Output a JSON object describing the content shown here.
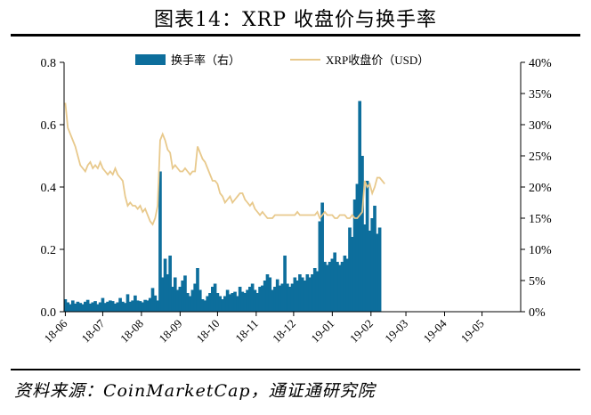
{
  "header": {
    "title": "图表14：XRP 收盘价与换手率"
  },
  "footer": {
    "source": "资料来源：CoinMarketCap，通证通研究院"
  },
  "colors": {
    "turnover": "#0d6e9c",
    "price": "#e8c98c",
    "axis": "#000000"
  },
  "chart_data": {
    "type": "bar+line",
    "title": "",
    "xlabel": "",
    "ylabel_left": "",
    "ylabel_right": "",
    "grid": false,
    "legend_position": "top-center",
    "x_tick_labels": [
      "18-06",
      "18-07",
      "18-08",
      "18-09",
      "18-10",
      "18-11",
      "18-12",
      "19-01",
      "19-02",
      "19-03",
      "19-04",
      "19-05"
    ],
    "y_left": {
      "ticks": [
        "0.0",
        "0.2",
        "0.4",
        "0.6",
        "0.8"
      ],
      "ylim": [
        0,
        0.8
      ]
    },
    "y_right": {
      "ticks": [
        "0%",
        "5%",
        "10%",
        "15%",
        "20%",
        "25%",
        "30%",
        "35%",
        "40%"
      ],
      "ylim": [
        0,
        40
      ]
    },
    "series": [
      {
        "name": "换手率（右）",
        "kind": "bar",
        "axis": "right",
        "unit": "%",
        "start": "2018-06-01",
        "step_days": 2,
        "values": [
          2.0,
          1.5,
          1.2,
          1.8,
          1.3,
          1.6,
          1.4,
          1.2,
          1.6,
          1.9,
          1.3,
          1.5,
          1.7,
          1.2,
          1.5,
          2.2,
          1.4,
          1.6,
          1.8,
          1.7,
          1.3,
          1.5,
          2.2,
          1.6,
          1.4,
          2.8,
          1.6,
          1.8,
          2.6,
          1.8,
          1.7,
          1.5,
          1.9,
          1.8,
          2.2,
          3.8,
          2.6,
          1.8,
          22.5,
          5.5,
          8.5,
          6.0,
          9.0,
          4.0,
          5.5,
          3.5,
          4.0,
          5.0,
          5.8,
          3.0,
          2.5,
          3.5,
          4.5,
          7.0,
          3.5,
          2.0,
          1.8,
          2.5,
          3.0,
          4.0,
          4.5,
          3.0,
          2.5,
          2.0,
          2.5,
          3.5,
          2.8,
          3.0,
          3.2,
          2.5,
          4.0,
          3.2,
          3.0,
          3.5,
          4.0,
          4.5,
          3.5,
          3.0,
          4.0,
          4.2,
          5.0,
          6.0,
          5.5,
          3.5,
          4.0,
          5.2,
          4.2,
          4.5,
          9.0,
          4.5,
          4.0,
          4.5,
          5.5,
          5.0,
          6.0,
          5.5,
          5.0,
          6.0,
          5.5,
          6.0,
          7.0,
          6.5,
          14.5,
          17.5,
          8.0,
          7.5,
          8.0,
          8.5,
          9.5,
          8.0,
          7.5,
          8.0,
          9.0,
          8.5,
          13.5,
          12.0,
          18.0,
          20.5,
          33.8,
          25.0,
          14.0,
          21.0,
          13.0,
          15.0,
          17.0,
          12.5,
          13.5
        ]
      },
      {
        "name": "XRP收盘价（USD）",
        "kind": "line",
        "axis": "left",
        "unit": "USD",
        "start": "2018-06-01",
        "step_days": 2,
        "values": [
          0.67,
          0.59,
          0.57,
          0.55,
          0.53,
          0.5,
          0.47,
          0.46,
          0.45,
          0.47,
          0.48,
          0.46,
          0.47,
          0.46,
          0.48,
          0.46,
          0.45,
          0.44,
          0.45,
          0.44,
          0.46,
          0.44,
          0.43,
          0.42,
          0.37,
          0.34,
          0.35,
          0.34,
          0.34,
          0.33,
          0.34,
          0.32,
          0.33,
          0.31,
          0.29,
          0.28,
          0.3,
          0.34,
          0.55,
          0.57,
          0.55,
          0.52,
          0.51,
          0.46,
          0.47,
          0.46,
          0.45,
          0.45,
          0.46,
          0.45,
          0.44,
          0.45,
          0.45,
          0.53,
          0.51,
          0.49,
          0.48,
          0.46,
          0.44,
          0.42,
          0.42,
          0.41,
          0.38,
          0.37,
          0.35,
          0.36,
          0.37,
          0.35,
          0.36,
          0.37,
          0.38,
          0.38,
          0.36,
          0.35,
          0.34,
          0.35,
          0.33,
          0.32,
          0.31,
          0.32,
          0.31,
          0.3,
          0.3,
          0.3,
          0.31,
          0.31,
          0.31,
          0.31,
          0.31,
          0.31,
          0.31,
          0.31,
          0.31,
          0.32,
          0.31,
          0.31,
          0.31,
          0.31,
          0.31,
          0.31,
          0.31,
          0.32,
          0.3,
          0.31,
          0.32,
          0.31,
          0.31,
          0.31,
          0.3,
          0.3,
          0.31,
          0.31,
          0.31,
          0.3,
          0.3,
          0.31,
          0.3,
          0.3,
          0.31,
          0.32,
          0.42,
          0.4,
          0.41,
          0.38,
          0.4,
          0.43,
          0.43,
          0.42,
          0.41
        ]
      }
    ]
  }
}
